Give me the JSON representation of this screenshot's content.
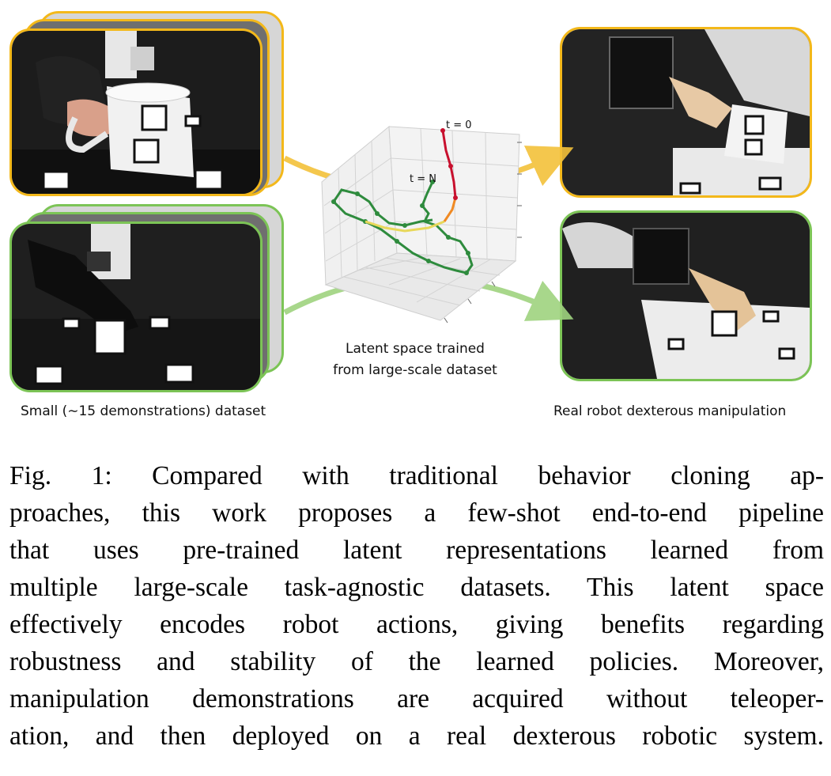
{
  "figure": {
    "left_caption": "Small (∼15 demonstrations) dataset",
    "right_caption": "Real robot dexterous manipulation",
    "center_caption_lines": [
      "Latent space trained",
      "from large-scale dataset"
    ],
    "plot_labels": {
      "start": "t = 0",
      "end": "t = N"
    },
    "colors": {
      "yellow_task": "#f3b81a",
      "green_task": "#7cc456",
      "stack_gray": "#d4d4d4"
    }
  },
  "caption": {
    "lines": [
      "Fig. 1: Compared with traditional behavior cloning ap-",
      "proaches, this work proposes a few-shot end-to-end pipeline",
      "that uses pre-trained latent representations learned from",
      "multiple large-scale task-agnostic datasets. This latent space",
      "effectively encodes robot actions, giving benefits regarding",
      "robustness and stability of the learned policies. Moreover,",
      "manipulation demonstrations are acquired without teleoper-",
      "ation, and then deployed on a real dexterous robotic system."
    ]
  }
}
